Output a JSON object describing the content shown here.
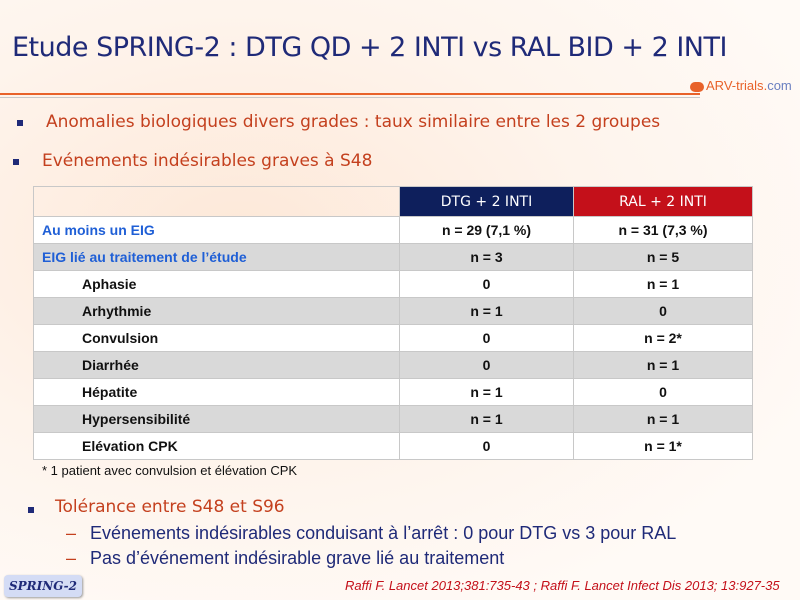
{
  "title": "Etude SPRING-2 : DTG QD + 2 INTI vs RAL BID + 2 INTI",
  "logo": {
    "name": "ARV-trials",
    "suffix": "com"
  },
  "bullets": [
    "Anomalies biologiques divers grades : taux similaire entre les 2 groupes",
    "Evénements indésirables graves à S48",
    "Tolérance entre S48 et S96"
  ],
  "table": {
    "headers": [
      "",
      "DTG + 2 INTI",
      "RAL + 2 INTI"
    ],
    "rows": [
      {
        "label": "Au moins un EIG",
        "dtg": "n = 29 (7,1 %)",
        "ral": "n = 31 (7,3 %)"
      },
      {
        "label": "EIG lié au traitement de l’étude",
        "dtg": "n = 3",
        "ral": "n = 5"
      },
      {
        "label": "Aphasie",
        "dtg": "0",
        "ral": "n = 1"
      },
      {
        "label": "Arhythmie",
        "dtg": "n = 1",
        "ral": "0"
      },
      {
        "label": "Convulsion",
        "dtg": "0",
        "ral": "n = 2*"
      },
      {
        "label": "Diarrhée",
        "dtg": "0",
        "ral": "n = 1"
      },
      {
        "label": "Hépatite",
        "dtg": "n = 1",
        "ral": "0"
      },
      {
        "label": "Hypersensibilité",
        "dtg": "n = 1",
        "ral": "n = 1"
      },
      {
        "label": "Elévation CPK",
        "dtg": "0",
        "ral": "n = 1*"
      }
    ],
    "footnote": "* 1 patient avec convulsion et élévation CPK"
  },
  "subbullets": [
    "Evénements indésirables conduisant à l’arrêt : 0 pour DTG vs 3 pour RAL",
    "Pas d’événement indésirable grave lié au traitement"
  ],
  "dash": "–",
  "badge": "SPRING-2",
  "reference": "Raffi F. Lancet 2013;381:735-43 ; Raffi F. Lancet Infect Dis 2013; 13:927-35"
}
